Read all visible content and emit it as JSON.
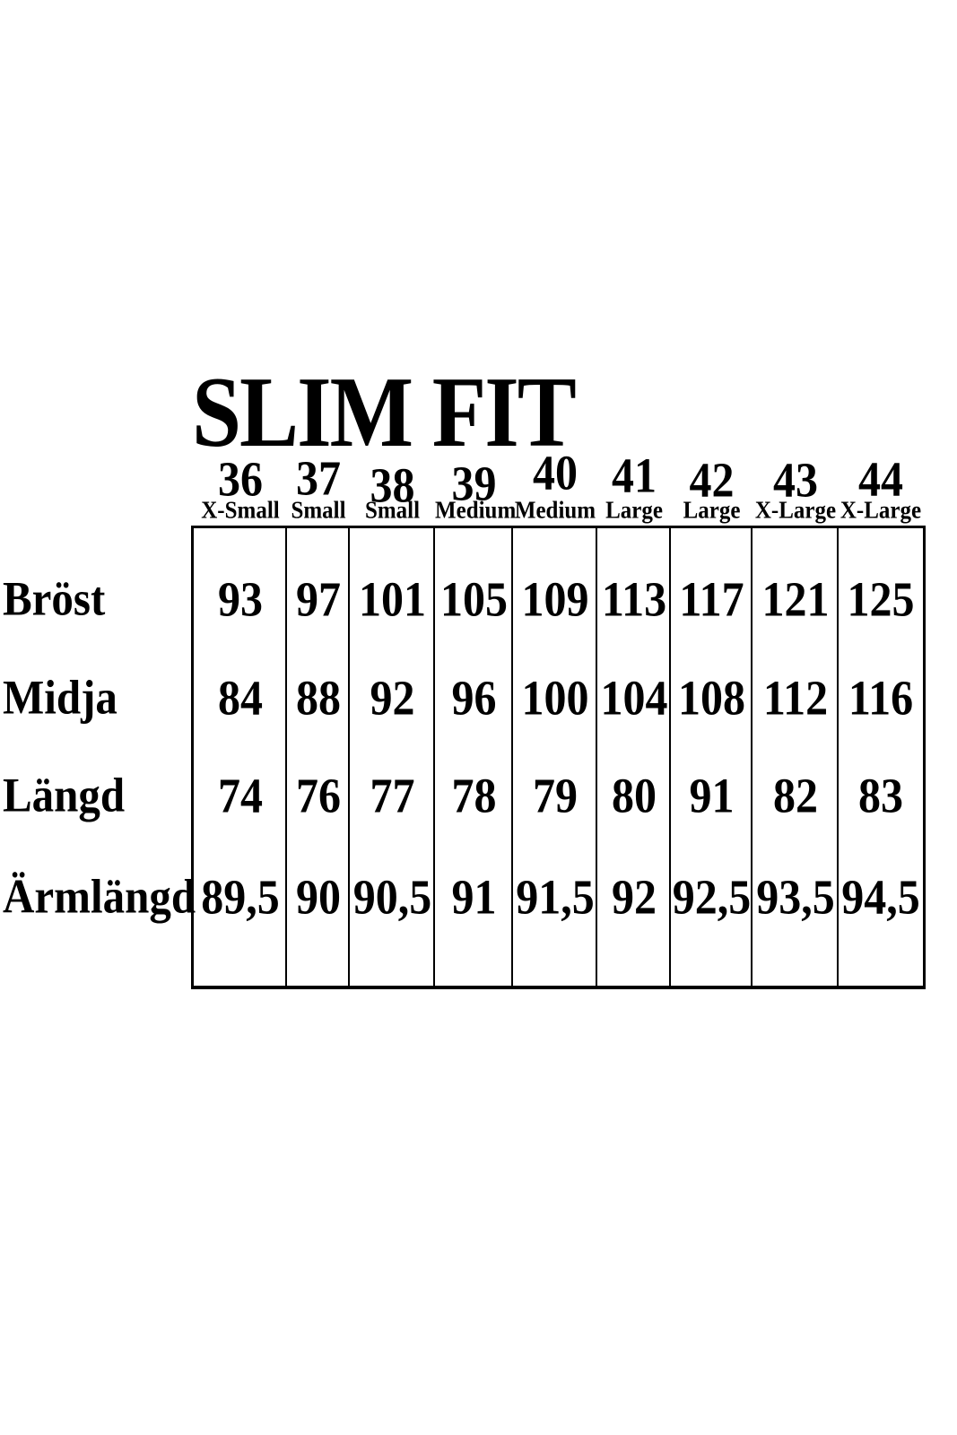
{
  "title": "SLIM FIT",
  "colors": {
    "text": "#000000",
    "background": "#ffffff",
    "border": "#000000"
  },
  "chart_data": {
    "type": "table",
    "title": "SLIM FIT",
    "sizes": [
      "36",
      "37",
      "38",
      "39",
      "40",
      "41",
      "42",
      "43",
      "44"
    ],
    "fit_labels": [
      "X-Small",
      "Small",
      "Small",
      "Medium",
      "Medium",
      "Large",
      "Large",
      "X-Large",
      "X-Large"
    ],
    "row_headers": [
      "Bröst",
      "Midja",
      "Längd",
      "Ärmlängd"
    ],
    "rows": [
      {
        "label": "Bröst",
        "values": [
          "93",
          "97",
          "101",
          "105",
          "109",
          "113",
          "117",
          "121",
          "125"
        ]
      },
      {
        "label": "Midja",
        "values": [
          "84",
          "88",
          "92",
          "96",
          "100",
          "104",
          "108",
          "112",
          "116"
        ]
      },
      {
        "label": "Längd",
        "values": [
          "74",
          "76",
          "77",
          "78",
          "79",
          "80",
          "91",
          "82",
          "83"
        ]
      },
      {
        "label": "Ärmlängd",
        "values": [
          "89,5",
          "90",
          "90,5",
          "91",
          "91,5",
          "92",
          "92,5",
          "93,5",
          "94,5"
        ]
      }
    ],
    "layout": {
      "grid": "vertical-lines-only",
      "legend": "none",
      "units": "cm"
    }
  }
}
